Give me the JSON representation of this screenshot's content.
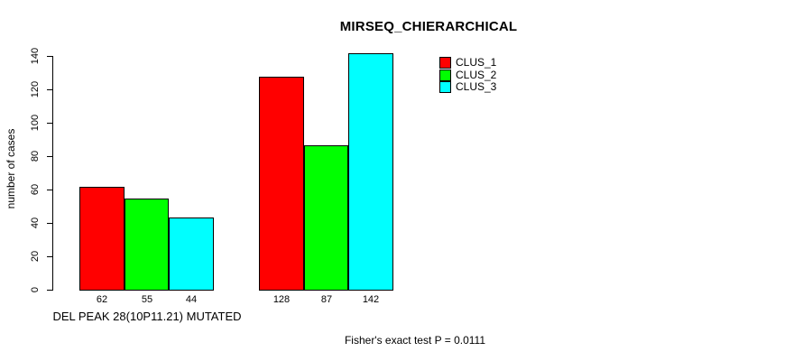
{
  "chart_data": {
    "type": "bar",
    "title": "MIRSEQ_CHIERARCHICAL",
    "ylabel": "number of cases",
    "xlabel": "DEL PEAK 28(10P11.21) MUTATED",
    "footnote": "Fisher's exact test P = 0.0111",
    "ylim": [
      0,
      140
    ],
    "yticks": [
      0,
      20,
      40,
      60,
      80,
      100,
      120,
      140
    ],
    "grid": false,
    "legend_position": "top-right",
    "background": "#ffffff",
    "series": [
      {
        "name": "CLUS_1",
        "color": "#ff0000"
      },
      {
        "name": "CLUS_2",
        "color": "#00ff00"
      },
      {
        "name": "CLUS_3",
        "color": "#00ffff"
      }
    ],
    "groups": [
      {
        "label": "DEL PEAK 28(10P11.21) MUTATED",
        "values": [
          62,
          55,
          44
        ]
      },
      {
        "label": "",
        "values": [
          128,
          87,
          142
        ]
      }
    ],
    "value_labels_shown": true
  }
}
